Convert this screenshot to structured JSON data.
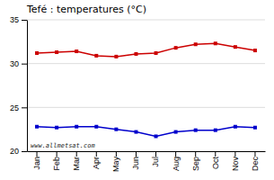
{
  "chart_data": {
    "type": "line",
    "title": "Tefé : temperatures (°C)",
    "categories": [
      "Jan",
      "Feb",
      "Mar",
      "Apr",
      "May",
      "Jun",
      "Jul",
      "Aug",
      "Sep",
      "Oct",
      "Nov",
      "Dec"
    ],
    "series": [
      {
        "color": "#cc0000",
        "marker": "square",
        "values": [
          31.2,
          31.3,
          31.4,
          30.9,
          30.8,
          31.1,
          31.2,
          31.8,
          32.2,
          32.3,
          31.9,
          31.5
        ]
      },
      {
        "color": "#0000cc",
        "marker": "square",
        "values": [
          22.8,
          22.7,
          22.8,
          22.8,
          22.5,
          22.2,
          21.7,
          22.2,
          22.4,
          22.4,
          22.8,
          22.7
        ]
      }
    ],
    "ylim": [
      20,
      35
    ],
    "yticks": [
      20,
      25,
      30,
      35
    ],
    "grid": true,
    "annotations": [
      "www.allmetsat.com"
    ]
  }
}
